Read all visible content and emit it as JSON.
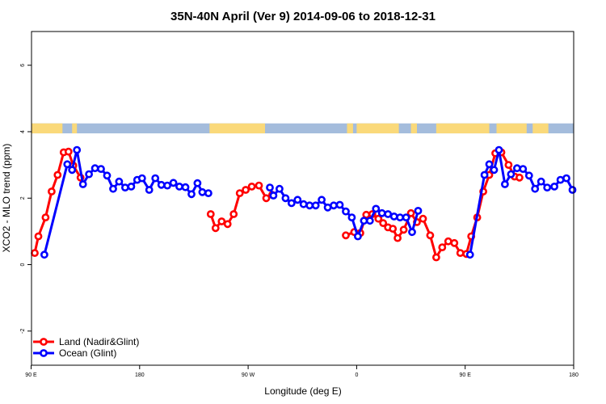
{
  "chart_data": {
    "type": "line",
    "title": "35N-40N April (Ver 9)   2014-09-06 to 2018-12-31",
    "xlabel": "Longitude (deg E)",
    "ylabel": "XCO2 - MLO trend (ppm)",
    "xlim": [
      90,
      540
    ],
    "ylim": [
      -3.2,
      7.0
    ],
    "x_ticks": [
      {
        "value": 90,
        "label": "90 E"
      },
      {
        "value": 180,
        "label": "180"
      },
      {
        "value": 270,
        "label": "90 W"
      },
      {
        "value": 360,
        "label": "0"
      },
      {
        "value": 450,
        "label": "90 E"
      },
      {
        "value": 540,
        "label": "180"
      }
    ],
    "y_ticks": [
      {
        "value": -2,
        "label": "-2"
      },
      {
        "value": 0,
        "label": "0"
      },
      {
        "value": 2,
        "label": "2"
      },
      {
        "value": 4,
        "label": "4"
      },
      {
        "value": 6,
        "label": "6"
      }
    ],
    "land_sea_band": {
      "y_range": [
        3.95,
        4.25
      ],
      "ocean_color": "#a4bcdc",
      "land_color": "#fad97a",
      "land_segments": [
        [
          90,
          116
        ],
        [
          124,
          128
        ],
        [
          238,
          284
        ],
        [
          352,
          357
        ],
        [
          360,
          395
        ],
        [
          405,
          410
        ],
        [
          426,
          470
        ],
        [
          476,
          501
        ],
        [
          506,
          519
        ]
      ]
    },
    "legend": {
      "position": "bottom-left"
    },
    "series": [
      {
        "name": "Land (Nadir&Glint)",
        "color": "#ff0000",
        "segments": [
          {
            "x": [
              93,
              96,
              102,
              107,
              112,
              117,
              121,
              125,
              131
            ],
            "y": [
              0.35,
              0.85,
              1.42,
              2.2,
              2.7,
              3.38,
              3.4,
              2.98,
              2.62
            ]
          },
          {
            "x": [
              239,
              243,
              248,
              253,
              258,
              263,
              268,
              273,
              279,
              285,
              290
            ],
            "y": [
              1.52,
              1.1,
              1.3,
              1.22,
              1.52,
              2.15,
              2.25,
              2.35,
              2.38,
              2.0,
              2.1
            ]
          },
          {
            "x": [
              351,
              358,
              363,
              368,
              373,
              378,
              382,
              386,
              390,
              394,
              399,
              405,
              410,
              415,
              421,
              426,
              431,
              436,
              441,
              446,
              451,
              455,
              460,
              465,
              470,
              475,
              480,
              486,
              491,
              495
            ],
            "y": [
              0.88,
              0.98,
              0.95,
              1.5,
              1.52,
              1.38,
              1.25,
              1.12,
              1.08,
              0.8,
              1.05,
              1.55,
              1.28,
              1.38,
              0.88,
              0.22,
              0.52,
              0.7,
              0.65,
              0.35,
              0.32,
              0.85,
              1.42,
              2.2,
              2.7,
              3.35,
              3.38,
              3.0,
              2.65,
              2.62
            ]
          }
        ]
      },
      {
        "name": "Ocean (Glint)",
        "color": "#0000ff",
        "segments": [
          {
            "x": [
              101,
              120,
              124,
              128,
              133,
              138,
              143,
              148,
              153,
              158,
              163,
              168,
              173,
              178,
              182,
              188,
              193,
              198,
              203,
              208,
              213,
              218,
              223,
              228,
              232,
              237
            ],
            "y": [
              0.3,
              3.02,
              2.85,
              3.45,
              2.42,
              2.72,
              2.9,
              2.88,
              2.68,
              2.28,
              2.5,
              2.32,
              2.35,
              2.55,
              2.6,
              2.25,
              2.6,
              2.4,
              2.38,
              2.46,
              2.35,
              2.33,
              2.12,
              2.45,
              2.18,
              2.15
            ]
          },
          {
            "x": [
              288,
              291,
              296,
              301,
              306,
              311,
              316,
              321,
              326,
              331,
              336,
              341,
              346,
              351,
              356,
              361,
              366,
              371,
              376,
              381,
              386,
              391,
              396,
              401,
              406,
              411
            ],
            "y": [
              2.32,
              2.08,
              2.28,
              2.0,
              1.85,
              1.95,
              1.82,
              1.78,
              1.78,
              1.95,
              1.72,
              1.78,
              1.8,
              1.6,
              1.42,
              0.85,
              1.32,
              1.32,
              1.68,
              1.55,
              1.52,
              1.45,
              1.42,
              1.42,
              0.98,
              1.62
            ]
          },
          {
            "x": [
              454,
              466,
              470,
              474,
              478,
              483,
              488,
              493,
              498,
              503,
              508,
              513,
              518,
              524,
              529,
              534,
              539
            ],
            "y": [
              0.3,
              2.7,
              3.02,
              2.85,
              3.45,
              2.42,
              2.72,
              2.9,
              2.88,
              2.68,
              2.28,
              2.5,
              2.32,
              2.35,
              2.55,
              2.6,
              2.25
            ]
          }
        ]
      }
    ]
  }
}
